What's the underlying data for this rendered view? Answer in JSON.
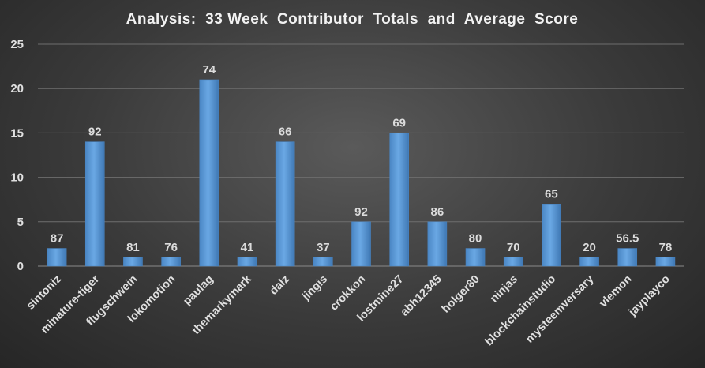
{
  "chart_data": {
    "type": "bar",
    "title": "Analysis:  33 Week  Contributor  Totals  and  Average  Score",
    "xlabel": "",
    "ylabel": "",
    "ylim": [
      0,
      25
    ],
    "yticks": [
      0,
      5,
      10,
      15,
      20,
      25
    ],
    "grid": true,
    "categories": [
      "sintoniz",
      "minature-tiger",
      "flugschwein",
      "lokomotion",
      "paulag",
      "themarkymark",
      "dalz",
      "jingis",
      "crokkon",
      "lostmine27",
      "abh12345",
      "holger80",
      "ninjas",
      "blockchainstudio",
      "mysteemversary",
      "vlemon",
      "jayplayco"
    ],
    "values": [
      2,
      14,
      1,
      1,
      21,
      1,
      14,
      1,
      5,
      15,
      5,
      2,
      1,
      7,
      1,
      2,
      1
    ],
    "data_labels": [
      "87",
      "92",
      "81",
      "76",
      "74",
      "41",
      "66",
      "37",
      "92",
      "69",
      "86",
      "80",
      "70",
      "65",
      "20",
      "56.5",
      "78"
    ],
    "bar_color": "#5b9bd5"
  }
}
